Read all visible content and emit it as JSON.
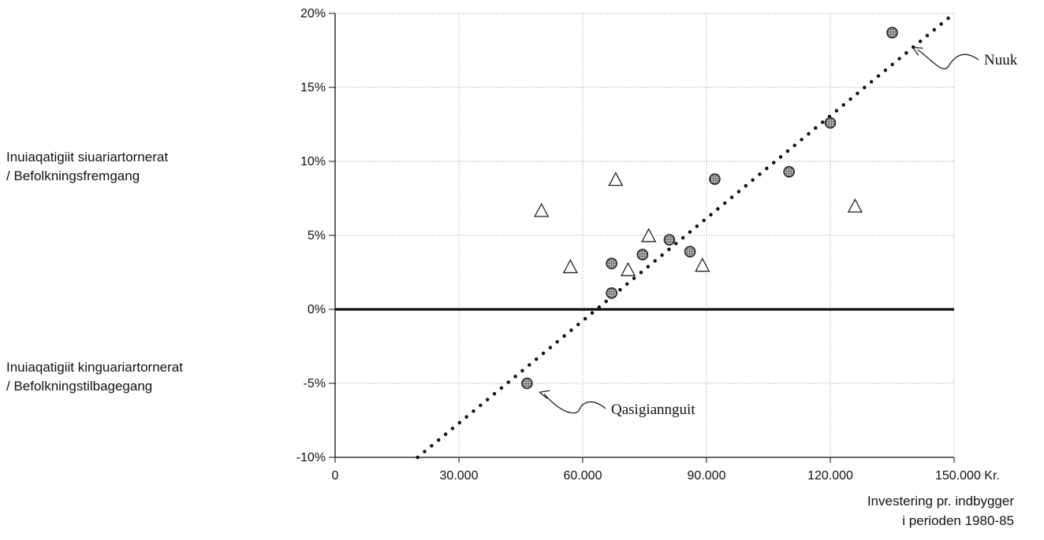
{
  "chart_data": {
    "type": "scatter",
    "xlim": [
      0,
      150000
    ],
    "ylim": [
      -10,
      20
    ],
    "x_ticks": [
      {
        "value": 0,
        "label": "0"
      },
      {
        "value": 30000,
        "label": "30.000"
      },
      {
        "value": 60000,
        "label": "60.000"
      },
      {
        "value": 90000,
        "label": "90.000"
      },
      {
        "value": 120000,
        "label": "120.000"
      },
      {
        "value": 150000,
        "label": "150.000 Kr."
      }
    ],
    "y_ticks": [
      {
        "value": -10,
        "label": "-10%"
      },
      {
        "value": -5,
        "label": "-5%"
      },
      {
        "value": 0,
        "label": "0%"
      },
      {
        "value": 5,
        "label": "5%"
      },
      {
        "value": 10,
        "label": "10%"
      },
      {
        "value": 15,
        "label": "15%"
      },
      {
        "value": 20,
        "label": "20%"
      }
    ],
    "ylabel_upper": [
      "Inuiaqatigiit siuariartornerat",
      "/ Befolkningsfremgang"
    ],
    "ylabel_lower": [
      "Inuiaqatigiit kinguariartornerat",
      "/ Befolkningstilbagegang"
    ],
    "xlabel": [
      "Investering pr. indbygger",
      "i perioden 1980-85"
    ],
    "grid": true,
    "series": [
      {
        "marker": "circle",
        "points": [
          {
            "x": 46500,
            "y": -5.0
          },
          {
            "x": 67000,
            "y": 1.1
          },
          {
            "x": 67000,
            "y": 3.1
          },
          {
            "x": 74500,
            "y": 3.7
          },
          {
            "x": 81000,
            "y": 4.7
          },
          {
            "x": 86000,
            "y": 3.9
          },
          {
            "x": 92000,
            "y": 8.8
          },
          {
            "x": 110000,
            "y": 9.3
          },
          {
            "x": 120000,
            "y": 12.6
          },
          {
            "x": 135000,
            "y": 18.7
          }
        ]
      },
      {
        "marker": "triangle",
        "points": [
          {
            "x": 50000,
            "y": 6.6
          },
          {
            "x": 57000,
            "y": 2.8
          },
          {
            "x": 68000,
            "y": 8.7
          },
          {
            "x": 71000,
            "y": 2.6
          },
          {
            "x": 76000,
            "y": 4.9
          },
          {
            "x": 89000,
            "y": 2.9
          },
          {
            "x": 126000,
            "y": 6.9
          }
        ]
      }
    ],
    "trendline": {
      "style": "dotted",
      "x": [
        20000,
        150000
      ],
      "y": [
        -10.0,
        20.0
      ]
    },
    "annotations": [
      {
        "text": "Nuuk",
        "point": {
          "x": 140000,
          "y": 17.7
        }
      },
      {
        "text": "Qasigiannguit",
        "point": {
          "x": 49500,
          "y": -5.6
        }
      }
    ],
    "colors": {
      "circle_fill": "#8a8a8a",
      "axis": "#111111",
      "grid": "#9a9a9a"
    }
  }
}
